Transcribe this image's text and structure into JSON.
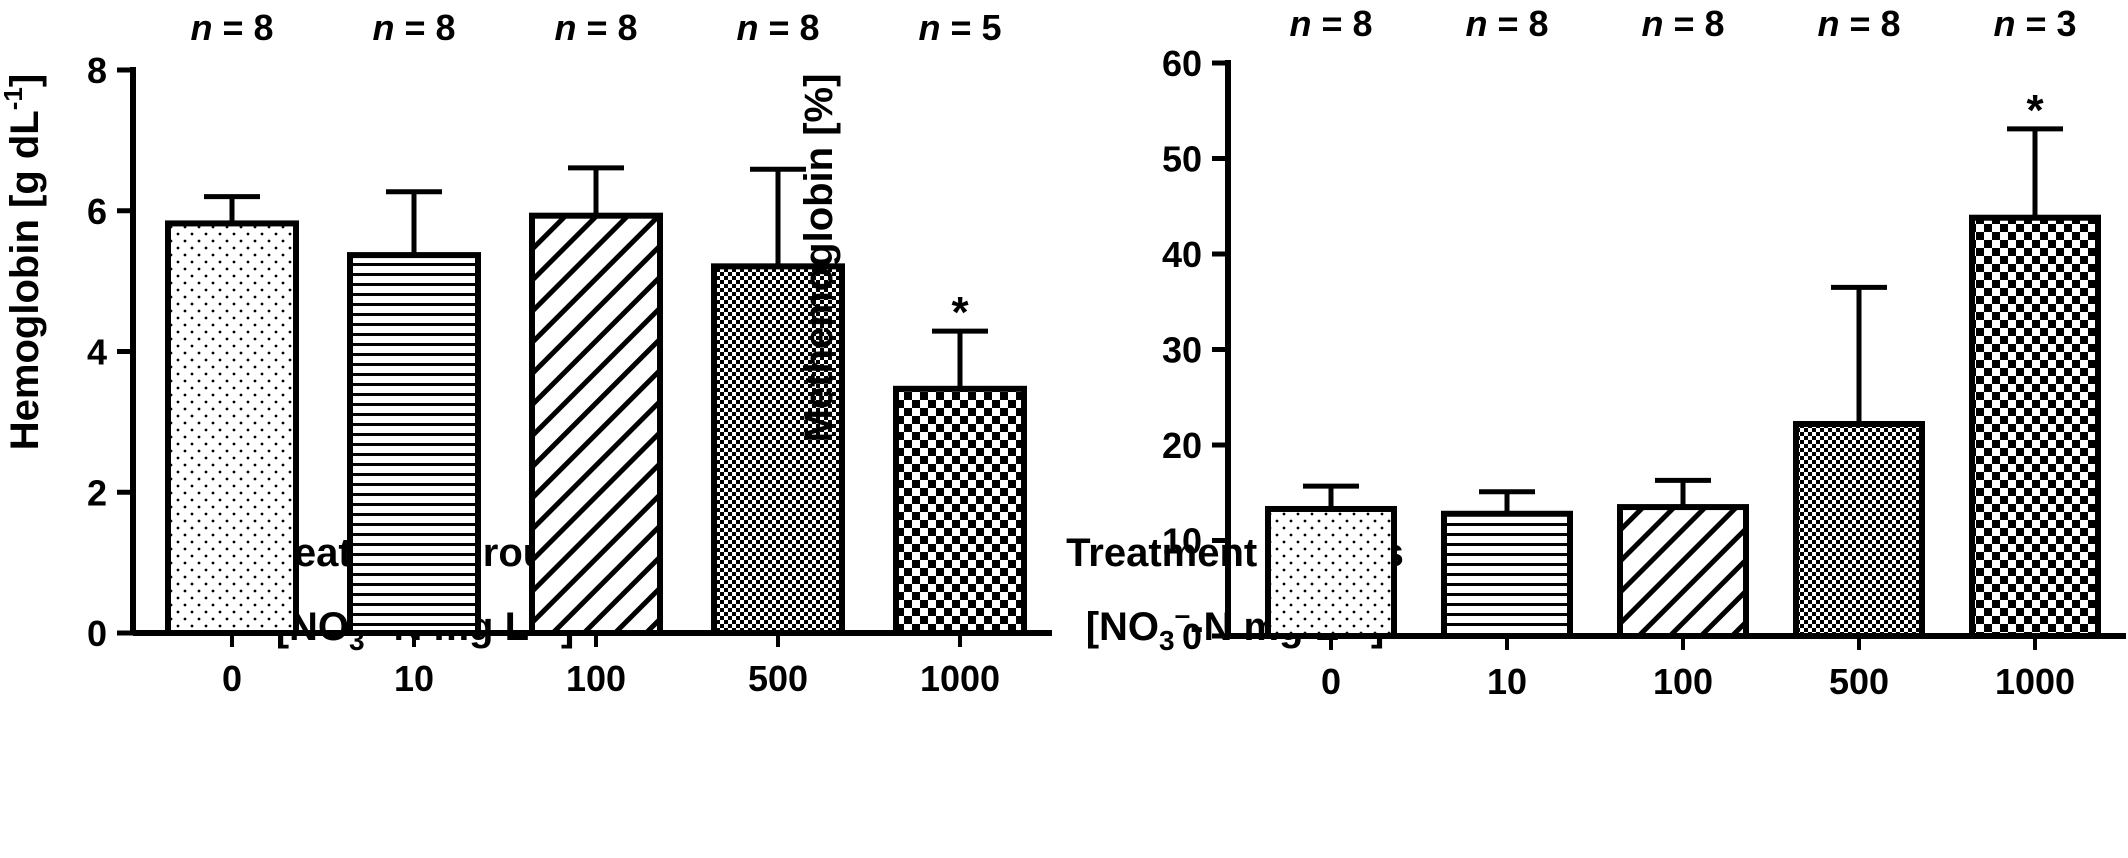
{
  "chart_data": [
    {
      "type": "bar",
      "categories": [
        "0",
        "10",
        "100",
        "500",
        "1000"
      ],
      "values": [
        5.82,
        5.37,
        5.93,
        5.21,
        3.47
      ],
      "errors": [
        0.38,
        0.9,
        0.68,
        1.38,
        0.82
      ],
      "n_labels": [
        "8",
        "8",
        "8",
        "8",
        "5"
      ],
      "significant": [
        false,
        false,
        false,
        false,
        true
      ],
      "patterns": [
        "dots",
        "hlines",
        "diag",
        "finecheck",
        "check"
      ],
      "ylabel_main": "Hemoglobin [g dL",
      "ylabel_sup": "-1",
      "ylabel_end": "]",
      "xlabel": "Treatment groups",
      "xlabel2": {
        "a": "[NO",
        "sub": "3",
        "sup": "–",
        "b": "-N mg L",
        "sup2": "−1",
        "c": "]"
      },
      "ylim": [
        0,
        8
      ],
      "yticks": [
        0,
        2,
        4,
        6,
        8
      ],
      "star_label": "*",
      "n_prefix": "n",
      "n_eq": " = "
    },
    {
      "type": "bar",
      "categories": [
        "0",
        "10",
        "100",
        "500",
        "1000"
      ],
      "values": [
        13.3,
        12.8,
        13.5,
        22.2,
        43.8
      ],
      "errors": [
        2.4,
        2.3,
        2.8,
        14.3,
        9.3
      ],
      "n_labels": [
        "8",
        "8",
        "8",
        "8",
        "3"
      ],
      "significant": [
        false,
        false,
        false,
        false,
        true
      ],
      "patterns": [
        "dots",
        "hlines",
        "diag",
        "finecheck",
        "check"
      ],
      "ylabel_main": "Methemoglobin [%]",
      "ylabel_sup": "",
      "ylabel_end": "",
      "xlabel": "Treatment groups",
      "xlabel2": {
        "a": "[NO",
        "sub": "3",
        "sup": "–",
        "b": "-N mg L",
        "sup2": "−1",
        "c": "]"
      },
      "ylim": [
        0,
        60
      ],
      "yticks": [
        0,
        10,
        20,
        30,
        40,
        50,
        60
      ],
      "star_label": "*",
      "n_prefix": "n",
      "n_eq": " = "
    }
  ]
}
